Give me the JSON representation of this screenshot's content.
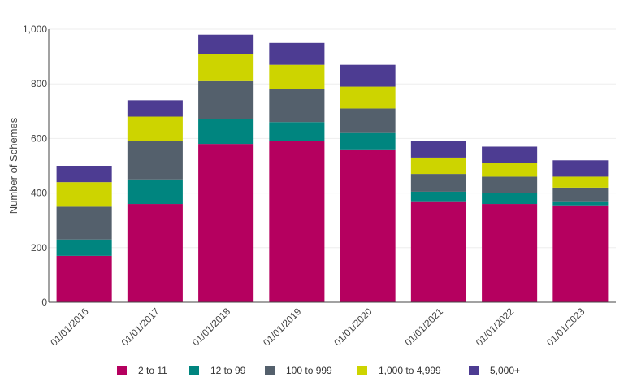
{
  "chart_data": {
    "type": "bar",
    "stacked": true,
    "categories": [
      "01/01/2016",
      "01/01/2017",
      "01/01/2018",
      "01/01/2019",
      "01/01/2020",
      "01/01/2021",
      "01/01/2022",
      "01/01/2023"
    ],
    "series": [
      {
        "name": "2 to 11",
        "color": "#b5005f",
        "values": [
          170,
          360,
          580,
          590,
          560,
          370,
          360,
          355
        ]
      },
      {
        "name": "12 to 99",
        "color": "#00857f",
        "values": [
          60,
          90,
          90,
          70,
          60,
          35,
          40,
          15
        ]
      },
      {
        "name": "100 to 999",
        "color": "#54606c",
        "values": [
          120,
          140,
          140,
          120,
          90,
          65,
          60,
          50
        ]
      },
      {
        "name": "1,000 to 4,999",
        "color": "#cdd400",
        "values": [
          90,
          90,
          100,
          90,
          80,
          60,
          50,
          40
        ]
      },
      {
        "name": "5,000+",
        "color": "#4d3c92",
        "values": [
          60,
          60,
          70,
          80,
          80,
          60,
          60,
          60
        ]
      }
    ],
    "ylabel": "Number of Schemes",
    "xlabel": "",
    "ylim": [
      0,
      1000
    ],
    "yticks": [
      0,
      200,
      400,
      600,
      800,
      1000
    ],
    "ytick_labels": [
      "0",
      "200",
      "400",
      "600",
      "800",
      "1,000"
    ],
    "grid": true,
    "legend_position": "bottom"
  }
}
